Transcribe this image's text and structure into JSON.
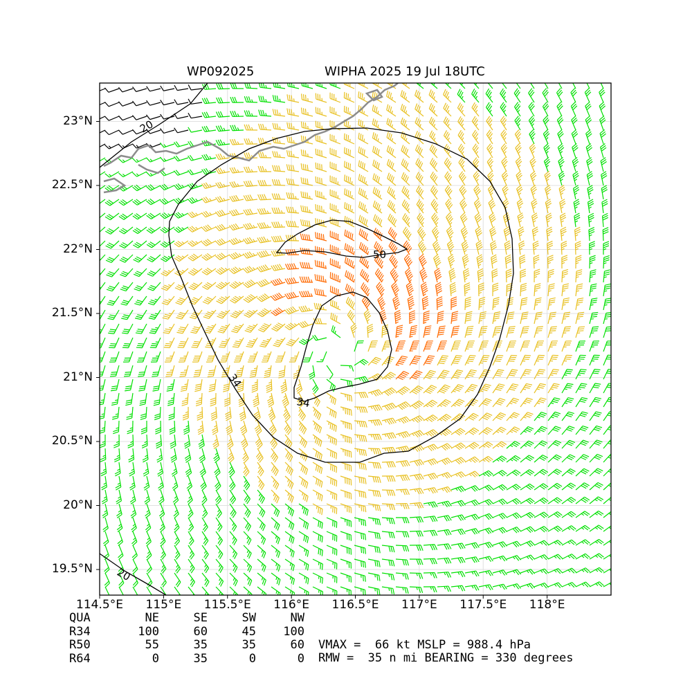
{
  "title": {
    "storm_id": "WP092025",
    "storm_label": "WIPHA 2025 19 Jul 18UTC"
  },
  "map": {
    "lon_range": [
      114.5,
      118.5
    ],
    "lat_range": [
      19.3,
      23.3
    ],
    "x_ticks": [
      "114.5°E",
      "115°E",
      "115.5°E",
      "116°E",
      "116.5°E",
      "117°E",
      "117.5°E",
      "118°E"
    ],
    "x_tick_values": [
      114.5,
      115.0,
      115.5,
      116.0,
      116.5,
      117.0,
      117.5,
      118.0
    ],
    "y_ticks": [
      "23°N",
      "22.5°N",
      "22°N",
      "21.5°N",
      "21°N",
      "20.5°N",
      "20°N",
      "19.5°N"
    ],
    "y_tick_values": [
      23.0,
      22.5,
      22.0,
      21.5,
      21.0,
      20.5,
      20.0,
      19.5
    ],
    "grid": true,
    "storm_center": [
      116.35,
      21.2
    ],
    "contour_labels": [
      "20",
      "34",
      "34",
      "50",
      "20"
    ],
    "colors": {
      "lt34": "#00e000",
      "34to50": "#e8c020",
      "50to64": "#ff6a00",
      "ge64": "#000000",
      "coast": "#8c8c8c",
      "contour": "#000000",
      "grid": "#e0e0e0"
    }
  },
  "radii": {
    "headers": [
      "QUA",
      "NE",
      "SE",
      "SW",
      "NW"
    ],
    "rows": [
      {
        "label": "R34",
        "values": [
          "100",
          "60",
          "45",
          "100"
        ]
      },
      {
        "label": "R50",
        "values": [
          "55",
          "35",
          "35",
          "60"
        ]
      },
      {
        "label": "R64",
        "values": [
          "0",
          "35",
          "0",
          "0"
        ]
      }
    ]
  },
  "stats": {
    "line1": "VMAX =  66 kt MSLP = 988.4 hPa",
    "line2": "RMW =  35 n mi BEARING = 330 degrees"
  }
}
